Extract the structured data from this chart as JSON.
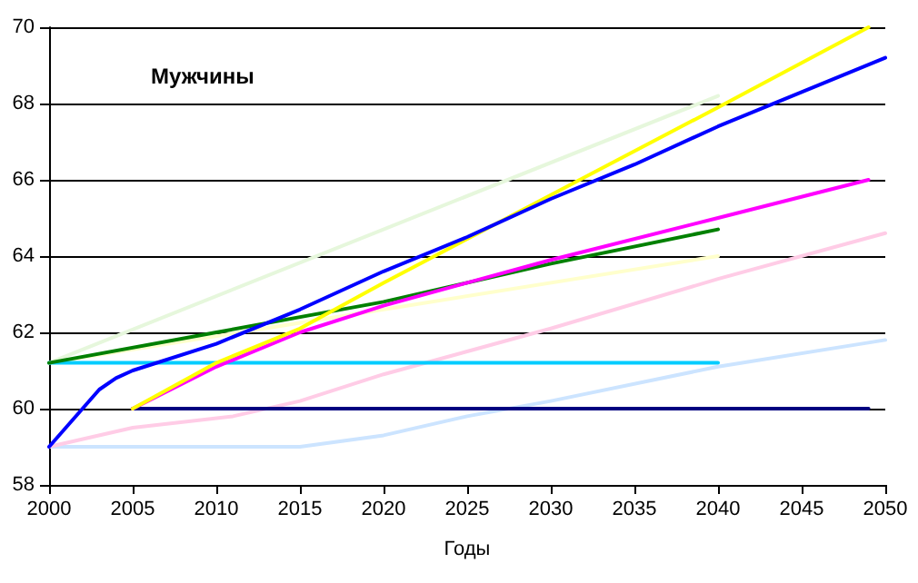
{
  "chart_data": {
    "type": "line",
    "title": "Мужчины",
    "xlabel": "Годы",
    "xlim": [
      2000,
      2050
    ],
    "xticks": [
      2000,
      2005,
      2010,
      2015,
      2020,
      2025,
      2030,
      2035,
      2040,
      2045,
      2050
    ],
    "ylim": [
      58,
      70
    ],
    "yticks": [
      58,
      60,
      62,
      64,
      66,
      68,
      70
    ],
    "grid": "y",
    "marker": "none",
    "line_style": "solid",
    "series": [
      {
        "color": "#e6f7dc",
        "x": [
          2000,
          2040
        ],
        "values": [
          61.2,
          68.2
        ]
      },
      {
        "color": "#ffffcc",
        "x": [
          2000,
          2040
        ],
        "values": [
          61.2,
          64.0
        ]
      },
      {
        "color": "#cce4ff",
        "x": [
          2000,
          2015,
          2020,
          2025,
          2030,
          2040,
          2050
        ],
        "values": [
          59,
          59,
          59.3,
          59.8,
          60.2,
          61.1,
          61.8
        ]
      },
      {
        "color": "#ffcce6",
        "x": [
          2000,
          2005,
          2011,
          2015,
          2020,
          2025,
          2030,
          2040,
          2050
        ],
        "values": [
          59,
          59.5,
          59.8,
          60.2,
          60.9,
          61.5,
          62.1,
          63.4,
          64.6
        ]
      },
      {
        "color": "#000080",
        "x": [
          2005,
          2049
        ],
        "values": [
          60,
          60
        ]
      },
      {
        "color": "#00ccff",
        "x": [
          2000,
          2040
        ],
        "values": [
          61.2,
          61.2
        ]
      },
      {
        "color": "#008000",
        "x": [
          2000,
          2010,
          2020,
          2030,
          2040
        ],
        "values": [
          61.2,
          62.0,
          62.8,
          63.8,
          64.7
        ]
      },
      {
        "color": "#ff00ff",
        "x": [
          2005,
          2010,
          2015,
          2020,
          2030,
          2040,
          2049
        ],
        "values": [
          60,
          61.1,
          62.0,
          62.7,
          63.9,
          65.0,
          66
        ]
      },
      {
        "color": "#ffff00",
        "x": [
          2005,
          2010,
          2015,
          2020,
          2030,
          2040,
          2049
        ],
        "values": [
          60,
          61.2,
          62.1,
          63.3,
          65.6,
          67.9,
          70
        ]
      },
      {
        "color": "#0000ff",
        "x": [
          2000,
          2001,
          2002,
          2003,
          2004,
          2005,
          2010,
          2015,
          2020,
          2025,
          2030,
          2035,
          2040,
          2045,
          2050
        ],
        "values": [
          59,
          59.5,
          60,
          60.5,
          60.8,
          61.0,
          61.7,
          62.6,
          63.6,
          64.5,
          65.5,
          66.4,
          67.4,
          68.3,
          69.2
        ]
      }
    ]
  }
}
